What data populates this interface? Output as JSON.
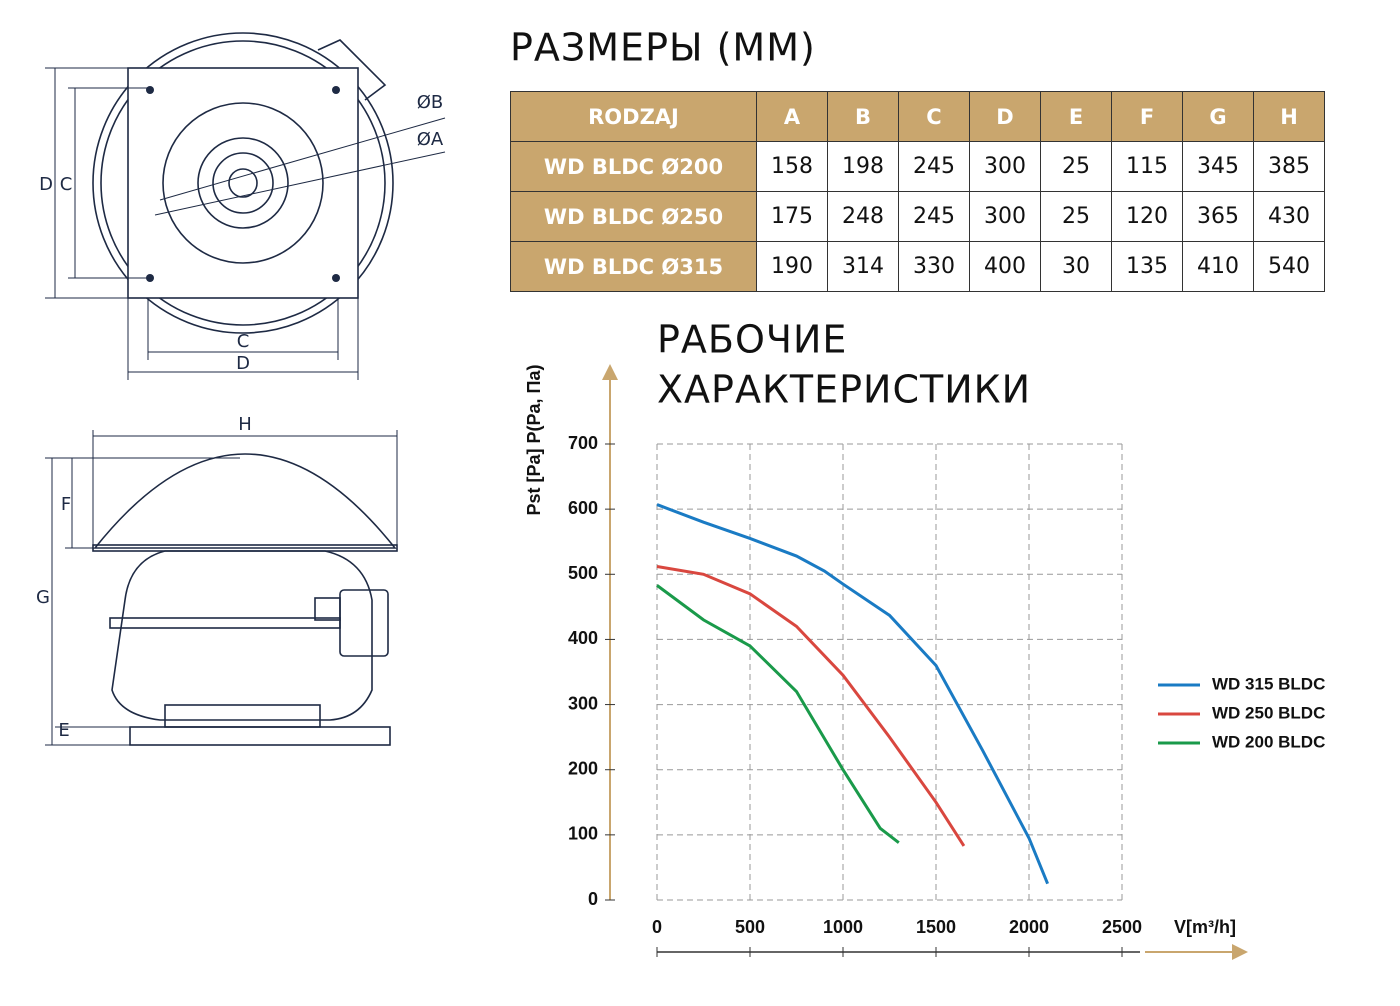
{
  "drawings": {
    "top_view": {
      "dim_d_vertical": "D",
      "dim_c_vertical": "C",
      "dim_b": "ØB",
      "dim_a": "ØA",
      "dim_c_horizontal": "C",
      "dim_d_horizontal": "D"
    },
    "side_view": {
      "dim_h": "H",
      "dim_f": "F",
      "dim_g": "G",
      "dim_e": "E"
    }
  },
  "header": {
    "title": "РАЗМЕРЫ (ММ)"
  },
  "table": {
    "columns": [
      "RODZAJ",
      "A",
      "B",
      "C",
      "D",
      "E",
      "F",
      "G",
      "H"
    ],
    "rows": [
      [
        "WD BLDC Ø200",
        "158",
        "198",
        "245",
        "300",
        "25",
        "115",
        "345",
        "385"
      ],
      [
        "WD BLDC Ø250",
        "175",
        "248",
        "245",
        "300",
        "25",
        "120",
        "365",
        "430"
      ],
      [
        "WD BLDC Ø315",
        "190",
        "314",
        "330",
        "400",
        "30",
        "135",
        "410",
        "540"
      ]
    ]
  },
  "chart_data": {
    "type": "line",
    "title": [
      "РАБОЧИЕ",
      "ХАРАКТЕРИСТИКИ"
    ],
    "x_label": "V[m³/h]",
    "y_label": "Pst [Pa] P(Pa, Па)",
    "xlim": [
      0,
      2500
    ],
    "ylim": [
      0,
      700
    ],
    "xticks": [
      0,
      500,
      1000,
      1500,
      2000,
      2500
    ],
    "yticks": [
      0,
      100,
      200,
      300,
      400,
      500,
      600,
      700
    ],
    "grid": true,
    "legend": "right",
    "series": [
      {
        "name": "WD 315 BLDC",
        "color": "#1a7bc4",
        "x": [
          0,
          250,
          500,
          750,
          900,
          1000,
          1250,
          1500,
          1750,
          2000,
          2100
        ],
        "values": [
          607,
          580,
          555,
          528,
          505,
          485,
          437,
          360,
          230,
          95,
          25
        ]
      },
      {
        "name": "WD 250 BLDC",
        "color": "#d9473f",
        "x": [
          0,
          250,
          500,
          750,
          1000,
          1250,
          1500,
          1650
        ],
        "values": [
          512,
          500,
          470,
          420,
          345,
          250,
          150,
          83
        ]
      },
      {
        "name": "WD 200 BLDC",
        "color": "#1a9a4a",
        "x": [
          0,
          250,
          500,
          750,
          1000,
          1200,
          1300
        ],
        "values": [
          483,
          430,
          390,
          320,
          200,
          110,
          88
        ]
      }
    ]
  }
}
